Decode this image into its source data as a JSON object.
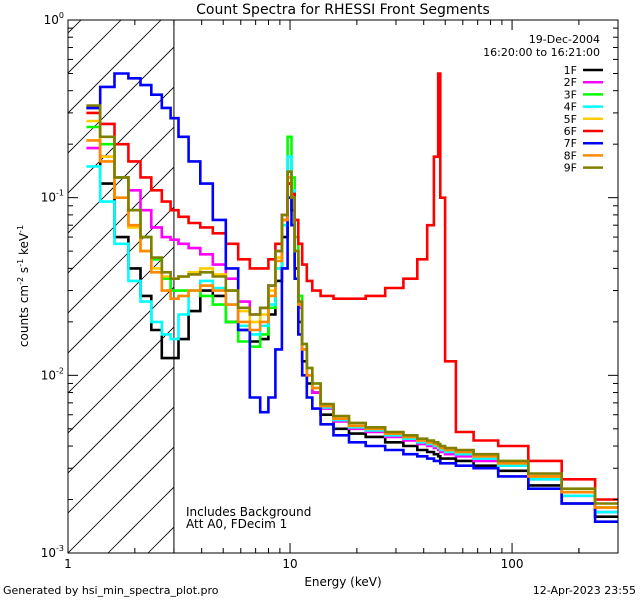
{
  "chart_data": {
    "type": "line",
    "title": "Count Spectra for RHESSI Front Segments",
    "xlabel": "Energy (keV)",
    "ylabel": "counts cm-2 s-1 keV-1",
    "xscale": "log",
    "yscale": "log",
    "xlim": [
      1,
      300
    ],
    "ylim": [
      0.001,
      1.0
    ],
    "x_tick_labels": [
      "1",
      "10",
      "100"
    ],
    "y_tick_labels": [
      "10^-3",
      "10^-2",
      "10^-1",
      "10^0"
    ],
    "hatched_region_keV": [
      1,
      3
    ],
    "date": "19-Dec-2004",
    "time_range": "16:20:00 to 16:21:00",
    "annotations": [
      "Includes Background",
      "Att A0, FDecim 1"
    ],
    "legend_position": "top-right",
    "x": [
      1.3,
      1.5,
      1.75,
      2.0,
      2.25,
      2.5,
      2.8,
      3.0,
      3.3,
      3.7,
      4.2,
      4.8,
      5.5,
      6.2,
      7.0,
      7.7,
      8.3,
      8.9,
      9.5,
      10.0,
      10.3,
      10.7,
      11.1,
      11.6,
      12.2,
      13.0,
      14.5,
      17.0,
      20.0,
      24.0,
      30.0,
      35.0,
      40.0,
      43.0,
      46.0,
      47.0,
      48.0,
      52.0,
      60.0,
      75.0,
      100.0,
      140.0,
      200.0,
      280.0
    ],
    "series": [
      {
        "name": "1F",
        "color": "#000000",
        "values": [
          0.32,
          0.12,
          0.06,
          0.04,
          0.028,
          0.018,
          0.0125,
          0.0125,
          0.016,
          0.023,
          0.03,
          0.028,
          0.02,
          0.018,
          0.0155,
          0.016,
          0.022,
          0.034,
          0.06,
          0.12,
          0.085,
          0.04,
          0.02,
          0.012,
          0.009,
          0.008,
          0.006,
          0.005,
          0.0047,
          0.0045,
          0.0042,
          0.004,
          0.0038,
          0.0037,
          0.0036,
          0.0035,
          0.0034,
          0.0034,
          0.0033,
          0.0031,
          0.0029,
          0.0024,
          0.0019,
          0.0016
        ]
      },
      {
        "name": "2F",
        "color": "#ff00ff",
        "values": [
          0.19,
          0.17,
          0.13,
          0.11,
          0.085,
          0.068,
          0.06,
          0.058,
          0.055,
          0.052,
          0.048,
          0.042,
          0.035,
          0.026,
          0.022,
          0.024,
          0.032,
          0.05,
          0.08,
          0.14,
          0.11,
          0.05,
          0.024,
          0.014,
          0.01,
          0.008,
          0.0065,
          0.0055,
          0.005,
          0.0048,
          0.0045,
          0.0043,
          0.0041,
          0.004,
          0.0039,
          0.0038,
          0.0037,
          0.0036,
          0.0035,
          0.0033,
          0.0031,
          0.0026,
          0.0021,
          0.0017
        ]
      },
      {
        "name": "3F",
        "color": "#00ff00",
        "values": [
          0.25,
          0.2,
          0.13,
          0.085,
          0.06,
          0.045,
          0.035,
          0.03,
          0.03,
          0.03,
          0.028,
          0.025,
          0.02,
          0.0155,
          0.0145,
          0.017,
          0.024,
          0.04,
          0.07,
          0.22,
          0.13,
          0.06,
          0.028,
          0.015,
          0.011,
          0.009,
          0.0068,
          0.0057,
          0.0052,
          0.005,
          0.0047,
          0.0045,
          0.0043,
          0.0042,
          0.0041,
          0.004,
          0.0039,
          0.0038,
          0.0037,
          0.0035,
          0.0032,
          0.0027,
          0.0022,
          0.0018
        ]
      },
      {
        "name": "4F",
        "color": "#00ffff",
        "values": [
          0.15,
          0.095,
          0.055,
          0.034,
          0.026,
          0.02,
          0.017,
          0.016,
          0.022,
          0.03,
          0.034,
          0.031,
          0.025,
          0.019,
          0.017,
          0.019,
          0.025,
          0.04,
          0.07,
          0.17,
          0.11,
          0.05,
          0.025,
          0.014,
          0.01,
          0.0085,
          0.0066,
          0.0056,
          0.0051,
          0.0049,
          0.0046,
          0.0044,
          0.0042,
          0.0041,
          0.004,
          0.0039,
          0.0038,
          0.0037,
          0.0036,
          0.0034,
          0.0031,
          0.0026,
          0.0021,
          0.0017
        ]
      },
      {
        "name": "5F",
        "color": "#ffcc00",
        "values": [
          0.27,
          0.17,
          0.1,
          0.068,
          0.05,
          0.04,
          0.036,
          0.035,
          0.036,
          0.038,
          0.04,
          0.037,
          0.03,
          0.023,
          0.02,
          0.022,
          0.03,
          0.046,
          0.075,
          0.13,
          0.1,
          0.05,
          0.025,
          0.014,
          0.01,
          0.0085,
          0.0067,
          0.0057,
          0.0052,
          0.005,
          0.0047,
          0.0045,
          0.0043,
          0.0042,
          0.0041,
          0.004,
          0.0039,
          0.0038,
          0.0037,
          0.0035,
          0.0032,
          0.0027,
          0.0022,
          0.0018
        ]
      },
      {
        "name": "6F",
        "color": "#ff0000",
        "values": [
          0.3,
          0.26,
          0.2,
          0.16,
          0.13,
          0.11,
          0.095,
          0.085,
          0.078,
          0.072,
          0.068,
          0.063,
          0.055,
          0.045,
          0.04,
          0.04,
          0.045,
          0.055,
          0.075,
          0.12,
          0.105,
          0.075,
          0.055,
          0.042,
          0.034,
          0.03,
          0.028,
          0.027,
          0.027,
          0.028,
          0.031,
          0.035,
          0.045,
          0.07,
          0.17,
          0.5,
          0.1,
          0.012,
          0.0048,
          0.0043,
          0.004,
          0.0033,
          0.0026,
          0.002
        ]
      },
      {
        "name": "7F",
        "color": "#0000ff",
        "values": [
          0.32,
          0.42,
          0.5,
          0.47,
          0.43,
          0.38,
          0.32,
          0.28,
          0.22,
          0.16,
          0.12,
          0.075,
          0.04,
          0.018,
          0.0075,
          0.0062,
          0.0075,
          0.014,
          0.04,
          0.1,
          0.07,
          0.035,
          0.017,
          0.01,
          0.0075,
          0.0065,
          0.0053,
          0.0046,
          0.0042,
          0.004,
          0.0038,
          0.0036,
          0.0035,
          0.0034,
          0.0033,
          0.0033,
          0.0032,
          0.0032,
          0.0031,
          0.003,
          0.0027,
          0.0023,
          0.0019,
          0.0015
        ]
      },
      {
        "name": "8F",
        "color": "#ff8800",
        "values": [
          0.21,
          0.16,
          0.1,
          0.07,
          0.05,
          0.038,
          0.03,
          0.027,
          0.028,
          0.03,
          0.032,
          0.03,
          0.025,
          0.02,
          0.018,
          0.02,
          0.028,
          0.044,
          0.075,
          0.13,
          0.1,
          0.05,
          0.025,
          0.014,
          0.01,
          0.0085,
          0.0067,
          0.0057,
          0.0052,
          0.005,
          0.0047,
          0.0045,
          0.0043,
          0.0042,
          0.0041,
          0.004,
          0.0039,
          0.0038,
          0.0037,
          0.0035,
          0.0032,
          0.0027,
          0.0022,
          0.0018
        ]
      },
      {
        "name": "9F",
        "color": "#808000",
        "values": [
          0.33,
          0.22,
          0.13,
          0.085,
          0.06,
          0.046,
          0.038,
          0.035,
          0.036,
          0.037,
          0.038,
          0.036,
          0.03,
          0.024,
          0.022,
          0.024,
          0.032,
          0.05,
          0.08,
          0.14,
          0.1,
          0.05,
          0.026,
          0.015,
          0.011,
          0.009,
          0.0069,
          0.0059,
          0.0054,
          0.0051,
          0.0048,
          0.0046,
          0.0044,
          0.0043,
          0.0042,
          0.0041,
          0.004,
          0.0039,
          0.0038,
          0.0036,
          0.0033,
          0.0028,
          0.0023,
          0.0019
        ]
      }
    ]
  },
  "footer": {
    "generated_by": "Generated by hsi_min_spectra_plot.pro",
    "timestamp": "12-Apr-2023 23:55"
  }
}
